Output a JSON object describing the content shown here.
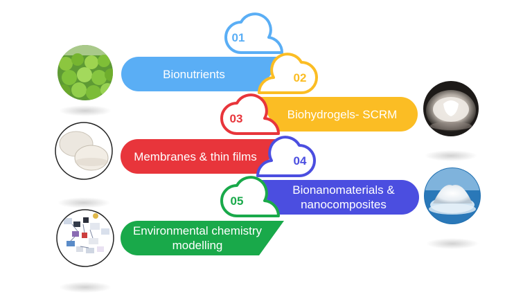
{
  "items": [
    {
      "number": "01",
      "label": "Bionutrients",
      "color": "#5aaef5",
      "image": "lettuce-plants-photo"
    },
    {
      "number": "02",
      "label": "Biohydrogels- SCRM",
      "color": "#fbbd24",
      "image": "hydrogel-dish-photo"
    },
    {
      "number": "03",
      "label": "Membranes & thin films",
      "color": "#e8353b",
      "image": "membrane-discs-photo"
    },
    {
      "number": "04",
      "label": "Bionanomaterials & nanocomposites",
      "color": "#4b4ee0",
      "image": "white-powder-dish-photo"
    },
    {
      "number": "05",
      "label": "Environmental chemistry modelling",
      "color": "#19a94a",
      "image": "chemistry-model-figure"
    }
  ]
}
